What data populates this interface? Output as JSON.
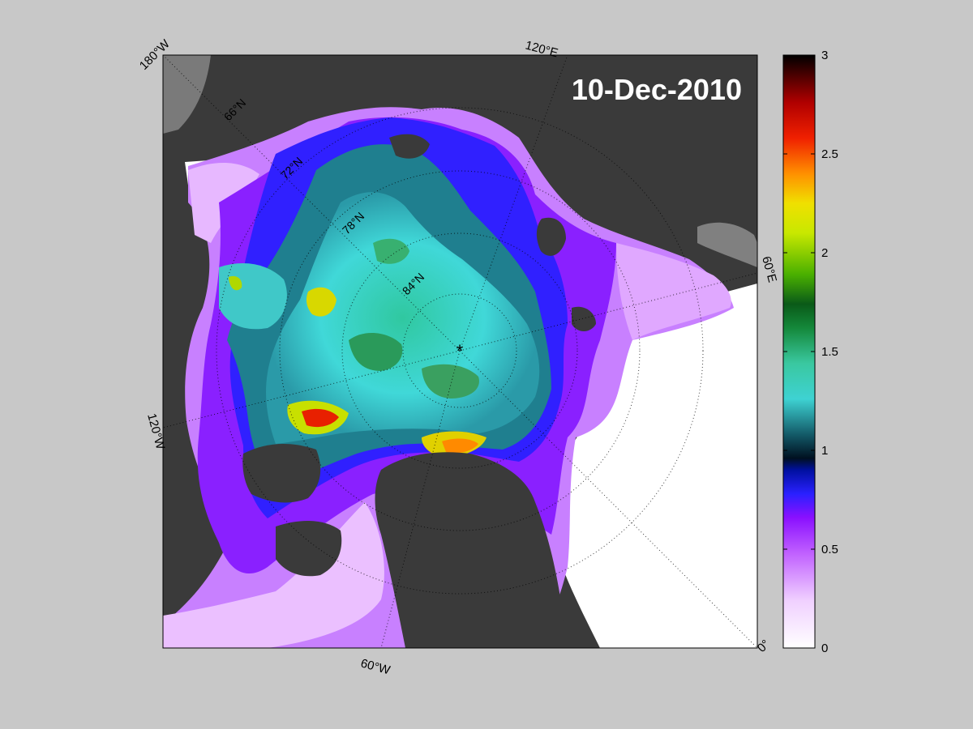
{
  "map": {
    "date": "10-Dec-2010",
    "pole_marker": "*",
    "meridian_labels": [
      "180°W",
      "120°E",
      "60°E",
      "0°",
      "60°W",
      "120°W"
    ],
    "parallel_labels": [
      "66°N",
      "72°N",
      "78°N",
      "84°N"
    ],
    "colors": {
      "land": "#3a3a3a",
      "ocean_open": "#ffffff",
      "background": "#c8c8c8",
      "frame": "#000000"
    }
  },
  "colorbar": {
    "min": 0,
    "max": 3,
    "tick_labels": [
      "0",
      "0.5",
      "1",
      "1.5",
      "2",
      "2.5",
      "3"
    ],
    "tick_values": [
      0,
      0.5,
      1,
      1.5,
      2,
      2.5,
      3
    ],
    "colormap": [
      "#ffffff",
      "#e9b0ff",
      "#b44cff",
      "#7a00ff",
      "#2020ff",
      "#001a33",
      "#1f6f7f",
      "#40e0d0",
      "#2aa87a",
      "#0b6a1c",
      "#7fd400",
      "#f0f000",
      "#ff8c00",
      "#e00000",
      "#7a0000",
      "#000000"
    ]
  }
}
